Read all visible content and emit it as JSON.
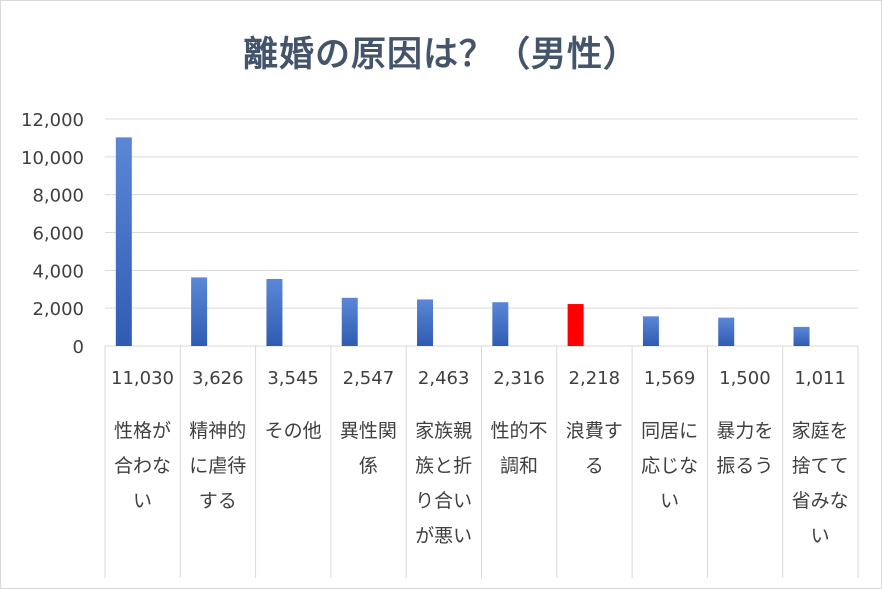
{
  "chart_data": {
    "type": "bar",
    "title": "離婚の原因は？（男性）",
    "categories": [
      "性格が合わない",
      "精神的に虐待する",
      "その他",
      "異性関係",
      "家族親族と折り合いが悪い",
      "性的不調和",
      "浪費する",
      "同居に応じない",
      "暴力を振るう",
      "家庭を捨てて省みない"
    ],
    "values": [
      11030,
      3626,
      3545,
      2547,
      2463,
      2316,
      2218,
      1569,
      1500,
      1011
    ],
    "value_labels": [
      "11,030",
      "3,626",
      "3,545",
      "2,547",
      "2,463",
      "2,316",
      "2,218",
      "1,569",
      "1,500",
      "1,011"
    ],
    "yticks": [
      "0",
      "2,000",
      "4,000",
      "6,000",
      "8,000",
      "10,000",
      "12,000"
    ],
    "ylim": [
      0,
      12000
    ],
    "grid": true,
    "bar_color": "#4472c4",
    "highlight_color": "#ff0000",
    "highlight_index": 6
  }
}
